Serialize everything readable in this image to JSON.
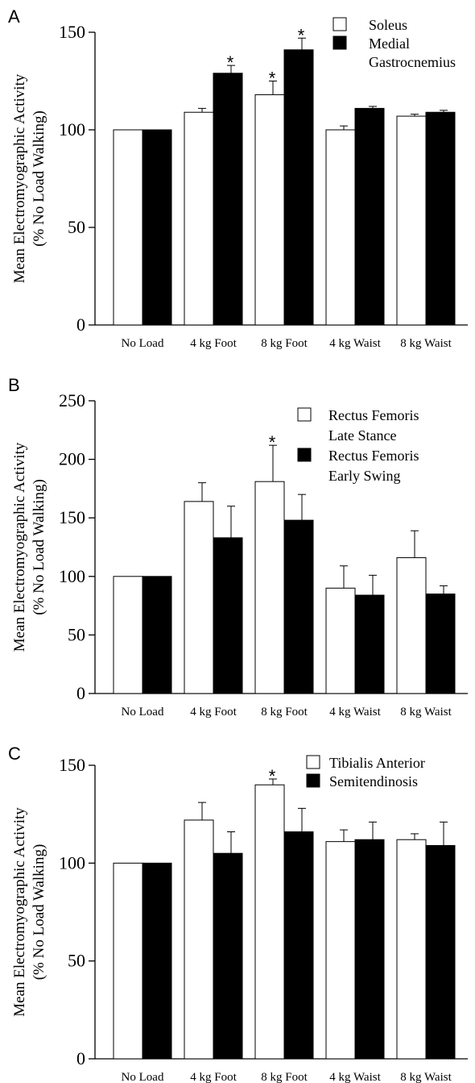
{
  "chart_data": [
    {
      "type": "bar",
      "panel": "A",
      "ylabel_lines": [
        "Mean Electromyographic Activity",
        "(% No Load Walking)"
      ],
      "categories": [
        "No Load",
        "4 kg Foot",
        "8 kg Foot",
        "4 kg Waist",
        "8 kg Waist"
      ],
      "ylim": [
        0,
        150
      ],
      "yticks": [
        0,
        50,
        100,
        150
      ],
      "legend_position": "top-right",
      "series": [
        {
          "name_lines": [
            "Soleus"
          ],
          "fill": "#ffffff",
          "values": [
            100,
            109,
            118,
            100,
            107
          ],
          "errors": [
            0,
            2,
            7,
            2,
            1
          ],
          "significant": [
            false,
            false,
            true,
            false,
            false
          ]
        },
        {
          "name_lines": [
            "Medial",
            "Gastrocnemius"
          ],
          "fill": "#000000",
          "values": [
            100,
            129,
            141,
            111,
            109
          ],
          "errors": [
            0,
            4,
            6,
            1,
            1
          ],
          "significant": [
            false,
            true,
            true,
            false,
            false
          ]
        }
      ],
      "significance_marker": "*"
    },
    {
      "type": "bar",
      "panel": "B",
      "ylabel_lines": [
        "Mean Electromyographic Activity",
        "(% No Load Walking)"
      ],
      "categories": [
        "No Load",
        "4 kg Foot",
        "8 kg Foot",
        "4 kg Waist",
        "8 kg Waist"
      ],
      "ylim": [
        0,
        250
      ],
      "yticks": [
        0,
        50,
        100,
        150,
        200,
        250
      ],
      "legend_position": "top-right",
      "series": [
        {
          "name_lines": [
            "Rectus Femoris",
            "Late Stance"
          ],
          "fill": "#ffffff",
          "values": [
            100,
            164,
            181,
            90,
            116
          ],
          "errors": [
            0,
            16,
            31,
            19,
            23
          ],
          "significant": [
            false,
            false,
            true,
            false,
            false
          ]
        },
        {
          "name_lines": [
            "Rectus Femoris",
            "Early Swing"
          ],
          "fill": "#000000",
          "values": [
            100,
            133,
            148,
            84,
            85
          ],
          "errors": [
            0,
            27,
            22,
            17,
            7
          ],
          "significant": [
            false,
            false,
            false,
            false,
            false
          ]
        }
      ],
      "significance_marker": "*"
    },
    {
      "type": "bar",
      "panel": "C",
      "ylabel_lines": [
        "Mean Electromyographic Activity",
        "(% No Load Walking)"
      ],
      "categories": [
        "No Load",
        "4 kg Foot",
        "8 kg Foot",
        "4 kg Waist",
        "8 kg Waist"
      ],
      "ylim": [
        0,
        150
      ],
      "yticks": [
        0,
        50,
        100,
        150
      ],
      "legend_position": "top-right",
      "series": [
        {
          "name_lines": [
            "Tibialis Anterior"
          ],
          "fill": "#ffffff",
          "values": [
            100,
            122,
            140,
            111,
            112
          ],
          "errors": [
            0,
            9,
            3,
            6,
            3
          ],
          "significant": [
            false,
            false,
            true,
            false,
            false
          ]
        },
        {
          "name_lines": [
            "Semitendinosis"
          ],
          "fill": "#000000",
          "values": [
            100,
            105,
            116,
            112,
            109
          ],
          "errors": [
            0,
            11,
            12,
            9,
            12
          ],
          "significant": [
            false,
            false,
            false,
            false,
            false
          ]
        }
      ],
      "significance_marker": "*"
    }
  ]
}
